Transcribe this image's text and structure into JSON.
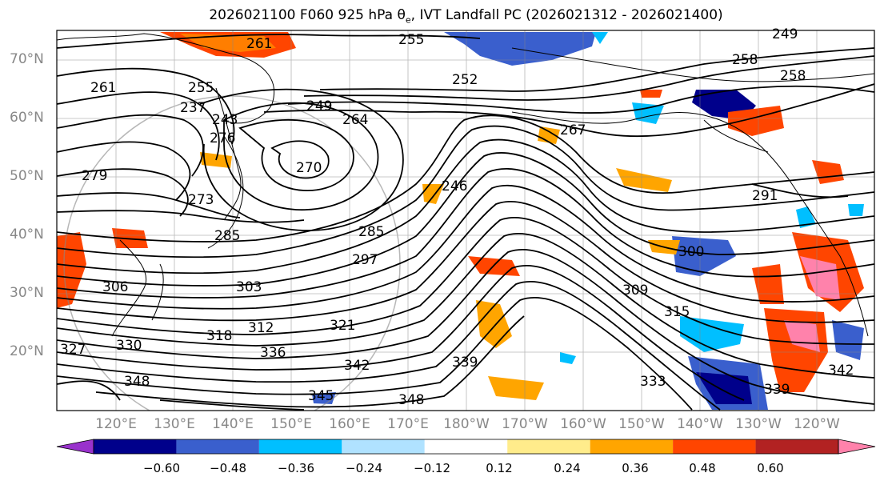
{
  "title": {
    "run": "2026021100 F060 925 hPa",
    "symbol": "θ",
    "subscript": "e",
    "rest": ", IVT Landfall PC (2026021312 - 2026021400)"
  },
  "axes": {
    "lat_labels": [
      "70°N",
      "60°N",
      "50°N",
      "40°N",
      "30°N",
      "20°N"
    ],
    "lon_labels": [
      "120°E",
      "130°E",
      "140°E",
      "150°E",
      "160°E",
      "170°E",
      "180°W",
      "170°W",
      "160°W",
      "150°W",
      "140°W",
      "130°W",
      "120°W"
    ]
  },
  "contour_labels": [
    "261",
    "255",
    "249",
    "258",
    "261",
    "255",
    "249",
    "258",
    "291",
    "279",
    "273",
    "285",
    "297",
    "285",
    "300",
    "303",
    "309",
    "315",
    "306",
    "318",
    "312",
    "321",
    "327",
    "330",
    "336",
    "342",
    "339",
    "333",
    "339",
    "342",
    "348",
    "345",
    "348",
    "264",
    "270",
    "243",
    "246",
    "267",
    "276",
    "252",
    "237"
  ],
  "colorbar": {
    "ticks": [
      "−0.60",
      "−0.48",
      "−0.36",
      "−0.24",
      "−0.12",
      "0.12",
      "0.24",
      "0.36",
      "0.48",
      "0.60"
    ],
    "colors": [
      "#9932cc",
      "#00008b",
      "#3a5fcd",
      "#00bfff",
      "#b0e2ff",
      "#ffffff",
      "#ffec8b",
      "#ffa500",
      "#ff4500",
      "#b22222",
      "#ff82ab"
    ]
  }
}
